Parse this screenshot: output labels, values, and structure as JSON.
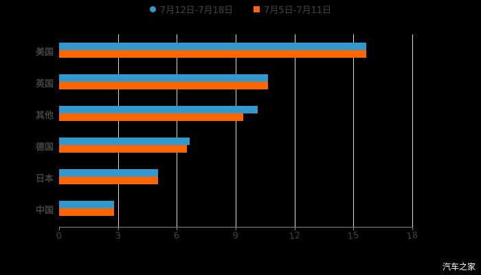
{
  "chart_data": {
    "type": "bar",
    "orientation": "horizontal",
    "title": "",
    "categories": [
      "美国",
      "英国",
      "其他",
      "德国",
      "日本",
      "中国"
    ],
    "series": [
      {
        "name": "7月12日-7月18日",
        "color": "#3399cc",
        "values": [
          15.66,
          10.64,
          10.12,
          6.65,
          5.04,
          2.8
        ]
      },
      {
        "name": "7月5日-7月11日",
        "color": "#ff6600",
        "values": [
          15.66,
          10.64,
          9.38,
          6.51,
          5.04,
          2.8
        ]
      }
    ],
    "xlabel": "",
    "ylabel": "",
    "xlim": [
      0,
      18
    ],
    "xticks": [
      "0",
      "3",
      "6",
      "9",
      "12",
      "15",
      "18"
    ],
    "grid": true,
    "legend_position": "top"
  },
  "legend": {
    "s1": "7月12日-7月18日",
    "s2": "7月5日-7月11日"
  },
  "watermark": "汽车之家"
}
